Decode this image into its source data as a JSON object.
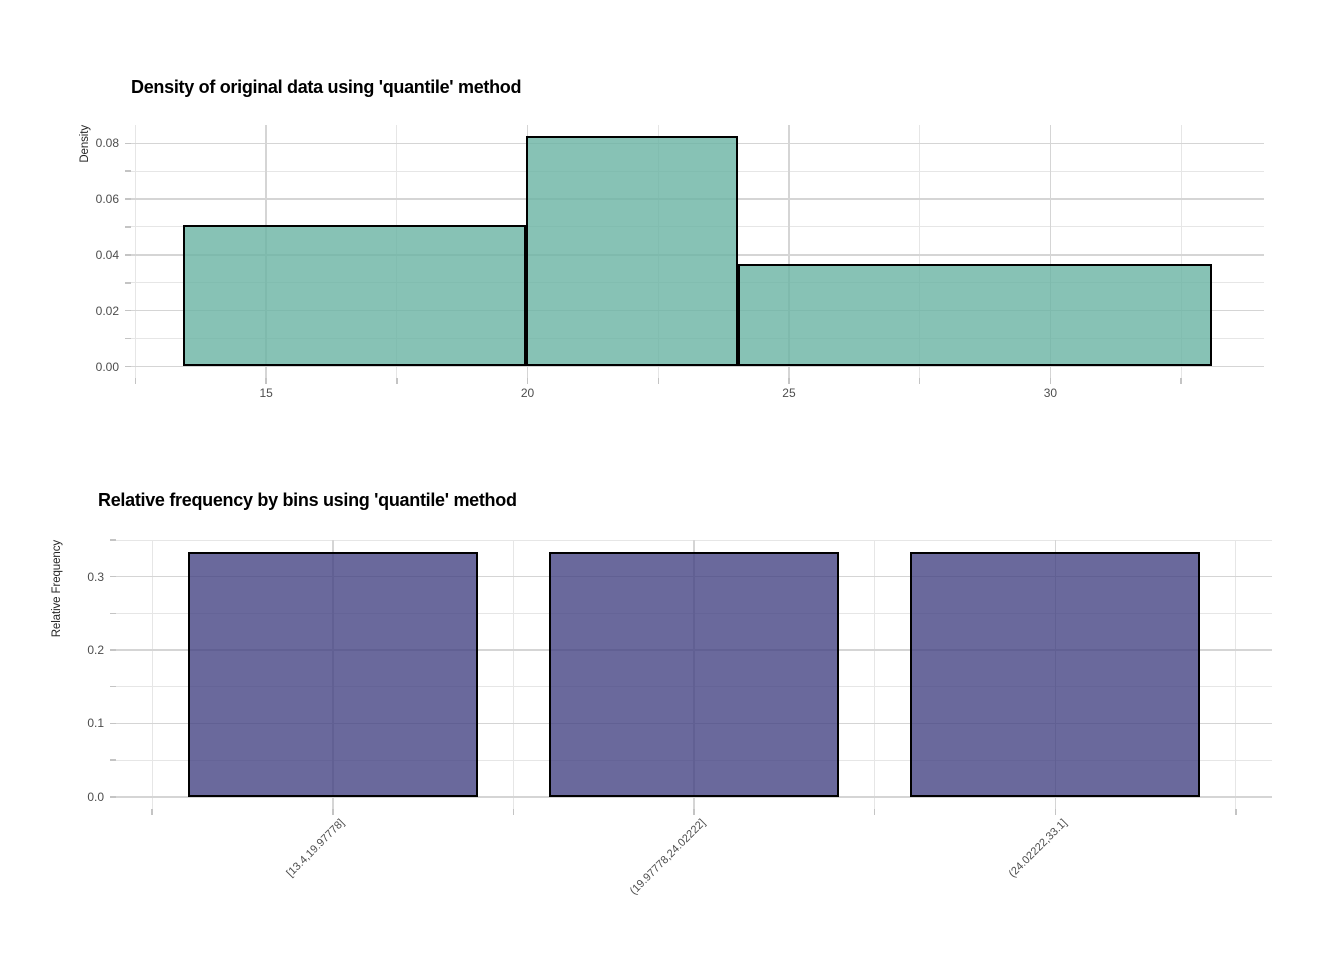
{
  "page": {
    "background": "#ffffff"
  },
  "chart_data": [
    {
      "type": "bar",
      "subtype": "histogram-density",
      "title": "Density of original data using 'quantile' method",
      "xlabel": "",
      "ylabel": "Density",
      "bins": [
        {
          "label": "[13.4,19.97778]",
          "from": 13.4,
          "to": 19.97778,
          "density": 0.05068
        },
        {
          "label": "(19.97778,24.02222]",
          "from": 19.97778,
          "to": 24.02222,
          "density": 0.08242
        },
        {
          "label": "(24.02222,33.1]",
          "from": 24.02222,
          "to": 33.1,
          "density": 0.03672
        }
      ],
      "x_ticks": [
        15,
        20,
        25,
        30
      ],
      "x_tick_labels": [
        "15",
        "20",
        "25",
        "30"
      ],
      "x_minor_ticks": [
        12.5,
        17.5,
        22.5,
        27.5,
        32.5
      ],
      "y_ticks": [
        0.0,
        0.02,
        0.04,
        0.06,
        0.08
      ],
      "y_tick_labels": [
        "0.00",
        "0.02",
        "0.04",
        "0.06",
        "0.08"
      ],
      "y_minor_ticks": [
        0.01,
        0.03,
        0.05,
        0.07
      ],
      "xlim": [
        12.415,
        34.085
      ],
      "ylim": [
        -0.00412,
        0.08654
      ],
      "grid": true,
      "legend": "none",
      "fill_hex": "#69b3a2",
      "fill_alpha": 0.8,
      "stroke_hex": "#000000",
      "grid_major_hex": "#d5d5d5",
      "grid_minor_hex": "#e6e6e6",
      "tick_mark_hex": "#c4c4c4"
    },
    {
      "type": "bar",
      "subtype": "relative-frequency",
      "title": "Relative frequency by bins using 'quantile' method",
      "xlabel": "",
      "ylabel": "Relative Frequency",
      "categories": [
        "[13.4,19.97778]",
        "(19.97778,24.02222]",
        "(24.02222,33.1]"
      ],
      "values": [
        0.33333,
        0.33333,
        0.33333
      ],
      "y_ticks": [
        0.0,
        0.1,
        0.2,
        0.3
      ],
      "y_tick_labels": [
        "0.0",
        "0.1",
        "0.2",
        "0.3"
      ],
      "y_minor_ticks": [
        0.05,
        0.15,
        0.25,
        0.35
      ],
      "x_major_positions": [
        1,
        2,
        3
      ],
      "x_minor_positions": [
        0.5,
        1.5,
        2.5,
        3.5
      ],
      "xlim": [
        0.4,
        3.6
      ],
      "ylim": [
        -0.01667,
        0.35
      ],
      "grid": true,
      "legend": "none",
      "fill_hex": "#403f80",
      "fill_alpha": 0.78,
      "stroke_hex": "#000000",
      "grid_major_hex": "#d5d5d5",
      "grid_minor_hex": "#e6e6e6",
      "tick_mark_hex": "#c4c4c4"
    }
  ]
}
